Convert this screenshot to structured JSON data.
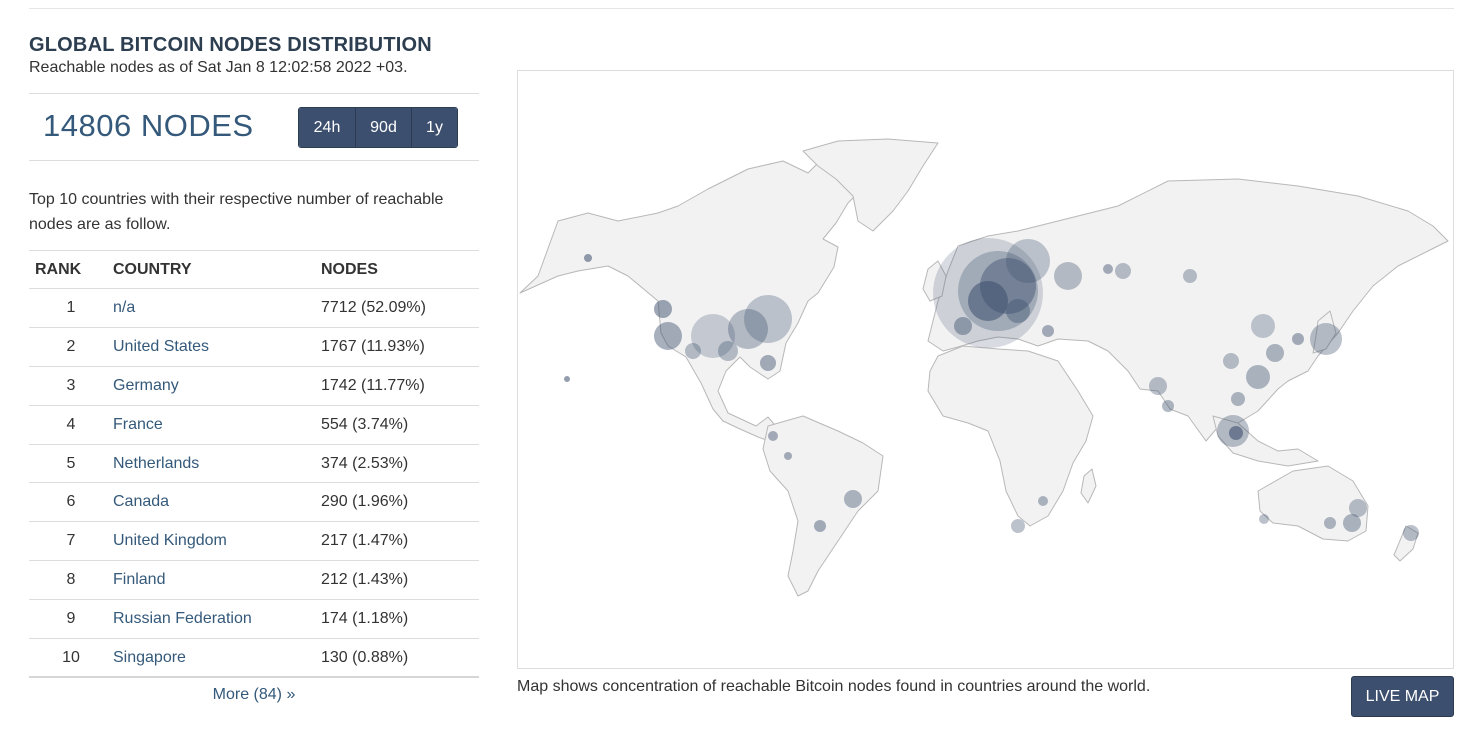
{
  "header": {
    "title": "GLOBAL BITCOIN NODES DISTRIBUTION",
    "subtitle": "Reachable nodes as of Sat Jan 8 12:02:58 2022 +03."
  },
  "summary": {
    "nodes_label": "14806 NODES",
    "ranges": [
      "24h",
      "90d",
      "1y"
    ]
  },
  "intro": "Top 10 countries with their respective number of reachable nodes are as follow.",
  "table": {
    "columns": [
      "RANK",
      "COUNTRY",
      "NODES"
    ],
    "rows": [
      {
        "rank": "1",
        "country": "n/a",
        "nodes": "7712 (52.09%)"
      },
      {
        "rank": "2",
        "country": "United States",
        "nodes": "1767 (11.93%)"
      },
      {
        "rank": "3",
        "country": "Germany",
        "nodes": "1742 (11.77%)"
      },
      {
        "rank": "4",
        "country": "France",
        "nodes": "554 (3.74%)"
      },
      {
        "rank": "5",
        "country": "Netherlands",
        "nodes": "374 (2.53%)"
      },
      {
        "rank": "6",
        "country": "Canada",
        "nodes": "290 (1.96%)"
      },
      {
        "rank": "7",
        "country": "United Kingdom",
        "nodes": "217 (1.47%)"
      },
      {
        "rank": "8",
        "country": "Finland",
        "nodes": "212 (1.43%)"
      },
      {
        "rank": "9",
        "country": "Russian Federation",
        "nodes": "174 (1.18%)"
      },
      {
        "rank": "10",
        "country": "Singapore",
        "nodes": "130 (0.88%)"
      }
    ],
    "more_link": "More (84) »"
  },
  "map": {
    "caption": "Map shows concentration of reachable Bitcoin nodes found in countries around the world.",
    "live_button": "LIVE MAP",
    "land_color": "#f2f2f2",
    "border_color": "#b8b8b8",
    "node_color": "#3d4f6e"
  }
}
